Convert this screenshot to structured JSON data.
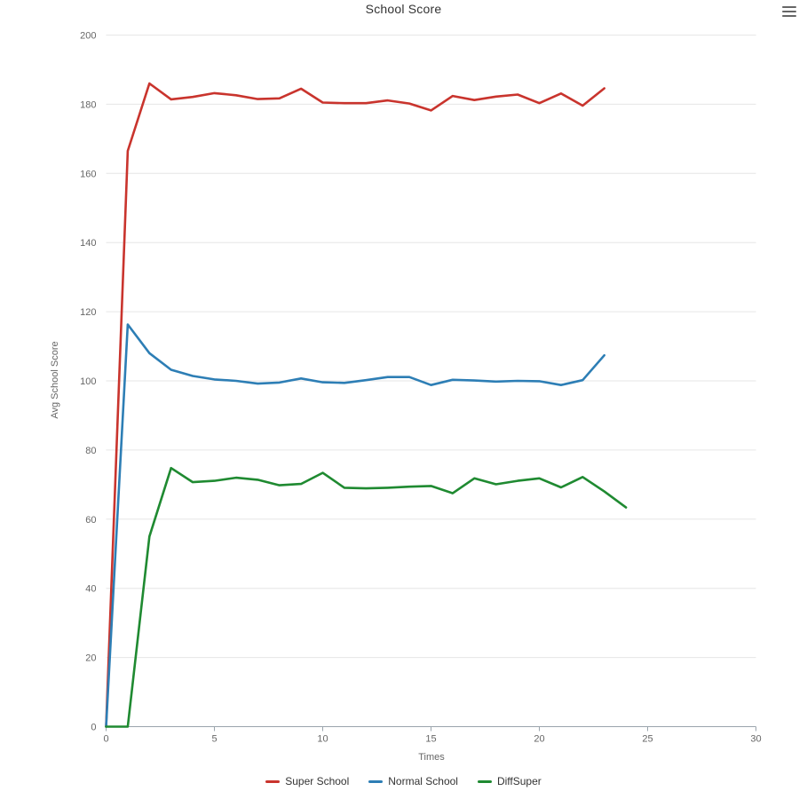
{
  "chart_data": {
    "type": "line",
    "title": "School Score",
    "xlabel": "Times",
    "ylabel": "Avg School Score",
    "xlim": [
      0,
      30
    ],
    "ylim": [
      0,
      200
    ],
    "x_tick_labels": [
      "0",
      "5",
      "10",
      "15",
      "20",
      "25",
      "30"
    ],
    "y_tick_labels": [
      "0",
      "20",
      "40",
      "60",
      "80",
      "100",
      "120",
      "140",
      "160",
      "180",
      "200"
    ],
    "grid": "horizontal",
    "legend_position": "bottom",
    "series": [
      {
        "name": "Super School",
        "color": "#c9342d",
        "x_start": 0,
        "x_step": 1,
        "values": [
          0,
          166.5,
          186,
          181.4,
          182.1,
          183.2,
          182.6,
          181.5,
          181.7,
          184.5,
          180.5,
          180.3,
          180.3,
          181.1,
          180.2,
          178.2,
          182.4,
          181.2,
          182.2,
          182.8,
          180.3,
          183.1,
          179.6,
          184.6
        ]
      },
      {
        "name": "Normal School",
        "color": "#2d7eb5",
        "x_start": 0,
        "x_step": 1,
        "values": [
          0,
          116.3,
          108,
          103.2,
          101.4,
          100.4,
          100,
          99.2,
          99.5,
          100.7,
          99.6,
          99.4,
          100.2,
          101.1,
          101.1,
          98.8,
          100.3,
          100.1,
          99.8,
          100,
          99.9,
          98.8,
          100.2,
          107.4
        ]
      },
      {
        "name": "DiffSuper",
        "color": "#1f8a31",
        "x_start": 0,
        "x_step": 1,
        "values": [
          0,
          0,
          55,
          74.8,
          70.7,
          71.1,
          72,
          71.4,
          69.8,
          70.2,
          73.4,
          69.1,
          68.9,
          69.1,
          69.4,
          69.6,
          67.5,
          71.8,
          70.1,
          71.1,
          71.8,
          69.2,
          72.2,
          68,
          63.4
        ]
      }
    ]
  },
  "icons": {
    "context_menu": "hamburger-icon"
  },
  "colors": {
    "background": "#ffffff",
    "grid_line": "#e6e6e6",
    "axis_line": "#9aa4ac",
    "tick_mark": "#9aa4ac",
    "tick_label": "#666666",
    "axis_title": "#666666",
    "chart_title": "#333333",
    "legend_text": "#333333",
    "menu_icon": "#666666"
  }
}
